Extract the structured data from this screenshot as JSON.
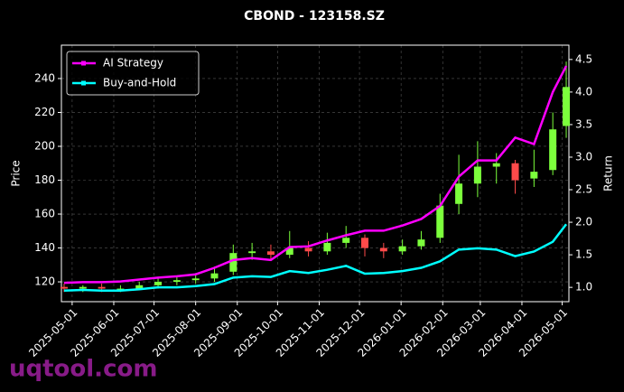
{
  "chart_data": {
    "type": "candlestick",
    "title": "CBOND - 123158.SZ",
    "y_label": "Price",
    "y2_label": "Return",
    "x": [
      "2025-04-25",
      "2025-05-09",
      "2025-05-23",
      "2025-06-06",
      "2025-06-20",
      "2025-07-04",
      "2025-07-18",
      "2025-08-01",
      "2025-08-15",
      "2025-08-29",
      "2025-09-12",
      "2025-09-26",
      "2025-10-10",
      "2025-10-24",
      "2025-11-07",
      "2025-11-21",
      "2025-12-05",
      "2025-12-19",
      "2026-01-02",
      "2026-01-16",
      "2026-01-30",
      "2026-02-13",
      "2026-02-27",
      "2026-03-13",
      "2026-03-27",
      "2026-04-10",
      "2026-04-24",
      "2026-05-04"
    ],
    "ohlc": {
      "open": [
        117,
        116,
        117,
        116,
        116,
        118,
        120,
        121,
        122,
        126,
        137,
        138,
        136,
        140,
        138,
        143,
        146,
        140,
        138,
        141,
        146,
        166,
        178,
        188,
        190,
        181,
        186,
        212
      ],
      "high": [
        119,
        118,
        119,
        118,
        120,
        122,
        123,
        124,
        129,
        142,
        143,
        142,
        150,
        144,
        149,
        153,
        148,
        143,
        145,
        150,
        172,
        195,
        203,
        196,
        192,
        198,
        220,
        250
      ],
      "low": [
        114,
        114,
        114,
        114,
        115,
        116,
        118,
        119,
        120,
        124,
        133,
        133,
        134,
        135,
        136,
        140,
        135,
        134,
        136,
        139,
        143,
        160,
        170,
        178,
        172,
        176,
        183,
        205
      ],
      "close": [
        116,
        117,
        116,
        116,
        118,
        120,
        121,
        122,
        125,
        137,
        138,
        136,
        140,
        138,
        143,
        146,
        140,
        138,
        141,
        145,
        165,
        178,
        188,
        190,
        180,
        185,
        210,
        235
      ]
    },
    "up_color": "#7cff3c",
    "down_color": "#ff4a4a",
    "series": [
      {
        "name": "AI Strategy",
        "color": "#ff00ff",
        "axis": "y2",
        "values": [
          1.07,
          1.08,
          1.08,
          1.09,
          1.12,
          1.15,
          1.17,
          1.2,
          1.3,
          1.42,
          1.45,
          1.42,
          1.62,
          1.63,
          1.72,
          1.8,
          1.87,
          1.87,
          1.95,
          2.05,
          2.25,
          2.7,
          2.95,
          2.95,
          3.3,
          3.2,
          4.0,
          4.4
        ]
      },
      {
        "name": "Buy-and-Hold",
        "color": "#00ffff",
        "axis": "y2",
        "values": [
          0.95,
          0.96,
          0.95,
          0.95,
          0.97,
          1.0,
          1.0,
          1.02,
          1.05,
          1.15,
          1.17,
          1.16,
          1.25,
          1.22,
          1.27,
          1.33,
          1.21,
          1.22,
          1.25,
          1.3,
          1.4,
          1.58,
          1.6,
          1.58,
          1.48,
          1.55,
          1.7,
          1.97
        ]
      }
    ],
    "xlim": [
      "2025-04-23",
      "2026-05-06"
    ],
    "xticks": [
      "2025-05-01",
      "2025-06-01",
      "2025-07-01",
      "2025-08-01",
      "2025-09-01",
      "2025-10-01",
      "2025-11-01",
      "2025-12-01",
      "2026-01-01",
      "2026-02-01",
      "2026-03-01",
      "2026-04-01",
      "2026-05-01"
    ],
    "ylim": [
      108.3,
      259.7
    ],
    "yticks": [
      120,
      140,
      160,
      180,
      200,
      220,
      240
    ],
    "y2lim": [
      0.78,
      4.72
    ],
    "y2ticks": [
      {
        "value": 1,
        "label": "1.0"
      },
      1.5,
      {
        "value": 2,
        "label": "2.0"
      },
      2.5,
      {
        "value": 3,
        "label": "3.0"
      },
      3.5,
      {
        "value": 4,
        "label": "4.0"
      },
      4.5
    ],
    "grid": true,
    "legend": "upper left",
    "watermark": "uqtool.com"
  }
}
